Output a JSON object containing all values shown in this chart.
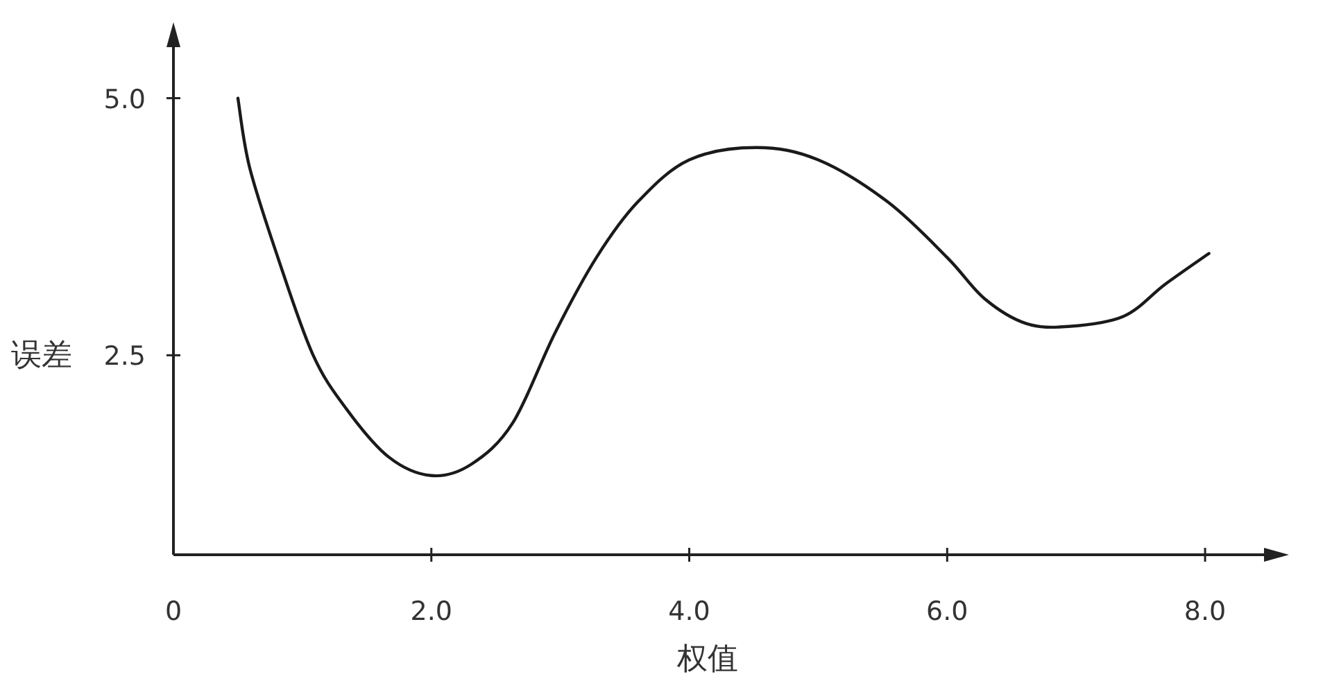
{
  "chart_data": {
    "type": "line",
    "xlabel": "权值",
    "ylabel": "误差",
    "color": "#1a1a1a",
    "marker": "none",
    "line_style": "solid",
    "grid": false,
    "x": [
      0.5,
      0.59,
      0.81,
      1.08,
      1.34,
      1.67,
      2.0,
      2.31,
      2.63,
      2.96,
      3.28,
      3.6,
      4.0,
      4.52,
      5.0,
      5.54,
      6.0,
      6.29,
      6.61,
      6.94,
      7.37,
      7.69,
      8.03
    ],
    "values": [
      5.0,
      4.33,
      3.45,
      2.51,
      1.98,
      1.51,
      1.33,
      1.44,
      1.84,
      2.72,
      3.45,
      3.99,
      4.4,
      4.52,
      4.4,
      3.99,
      3.45,
      3.05,
      2.81,
      2.78,
      2.88,
      3.19,
      3.49
    ],
    "xlim": [
      0,
      8.5
    ],
    "ylim": [
      0.56,
      5.55
    ],
    "xticks": [
      0,
      {
        "value": 2,
        "label": "2.0"
      },
      {
        "value": 4,
        "label": "4.0"
      },
      {
        "value": 6,
        "label": "6.0"
      },
      {
        "value": 8,
        "label": "8.0"
      }
    ],
    "yticks": [
      {
        "value": 2.5,
        "label": "2.5"
      },
      {
        "value": 5,
        "label": "5.0"
      }
    ]
  }
}
